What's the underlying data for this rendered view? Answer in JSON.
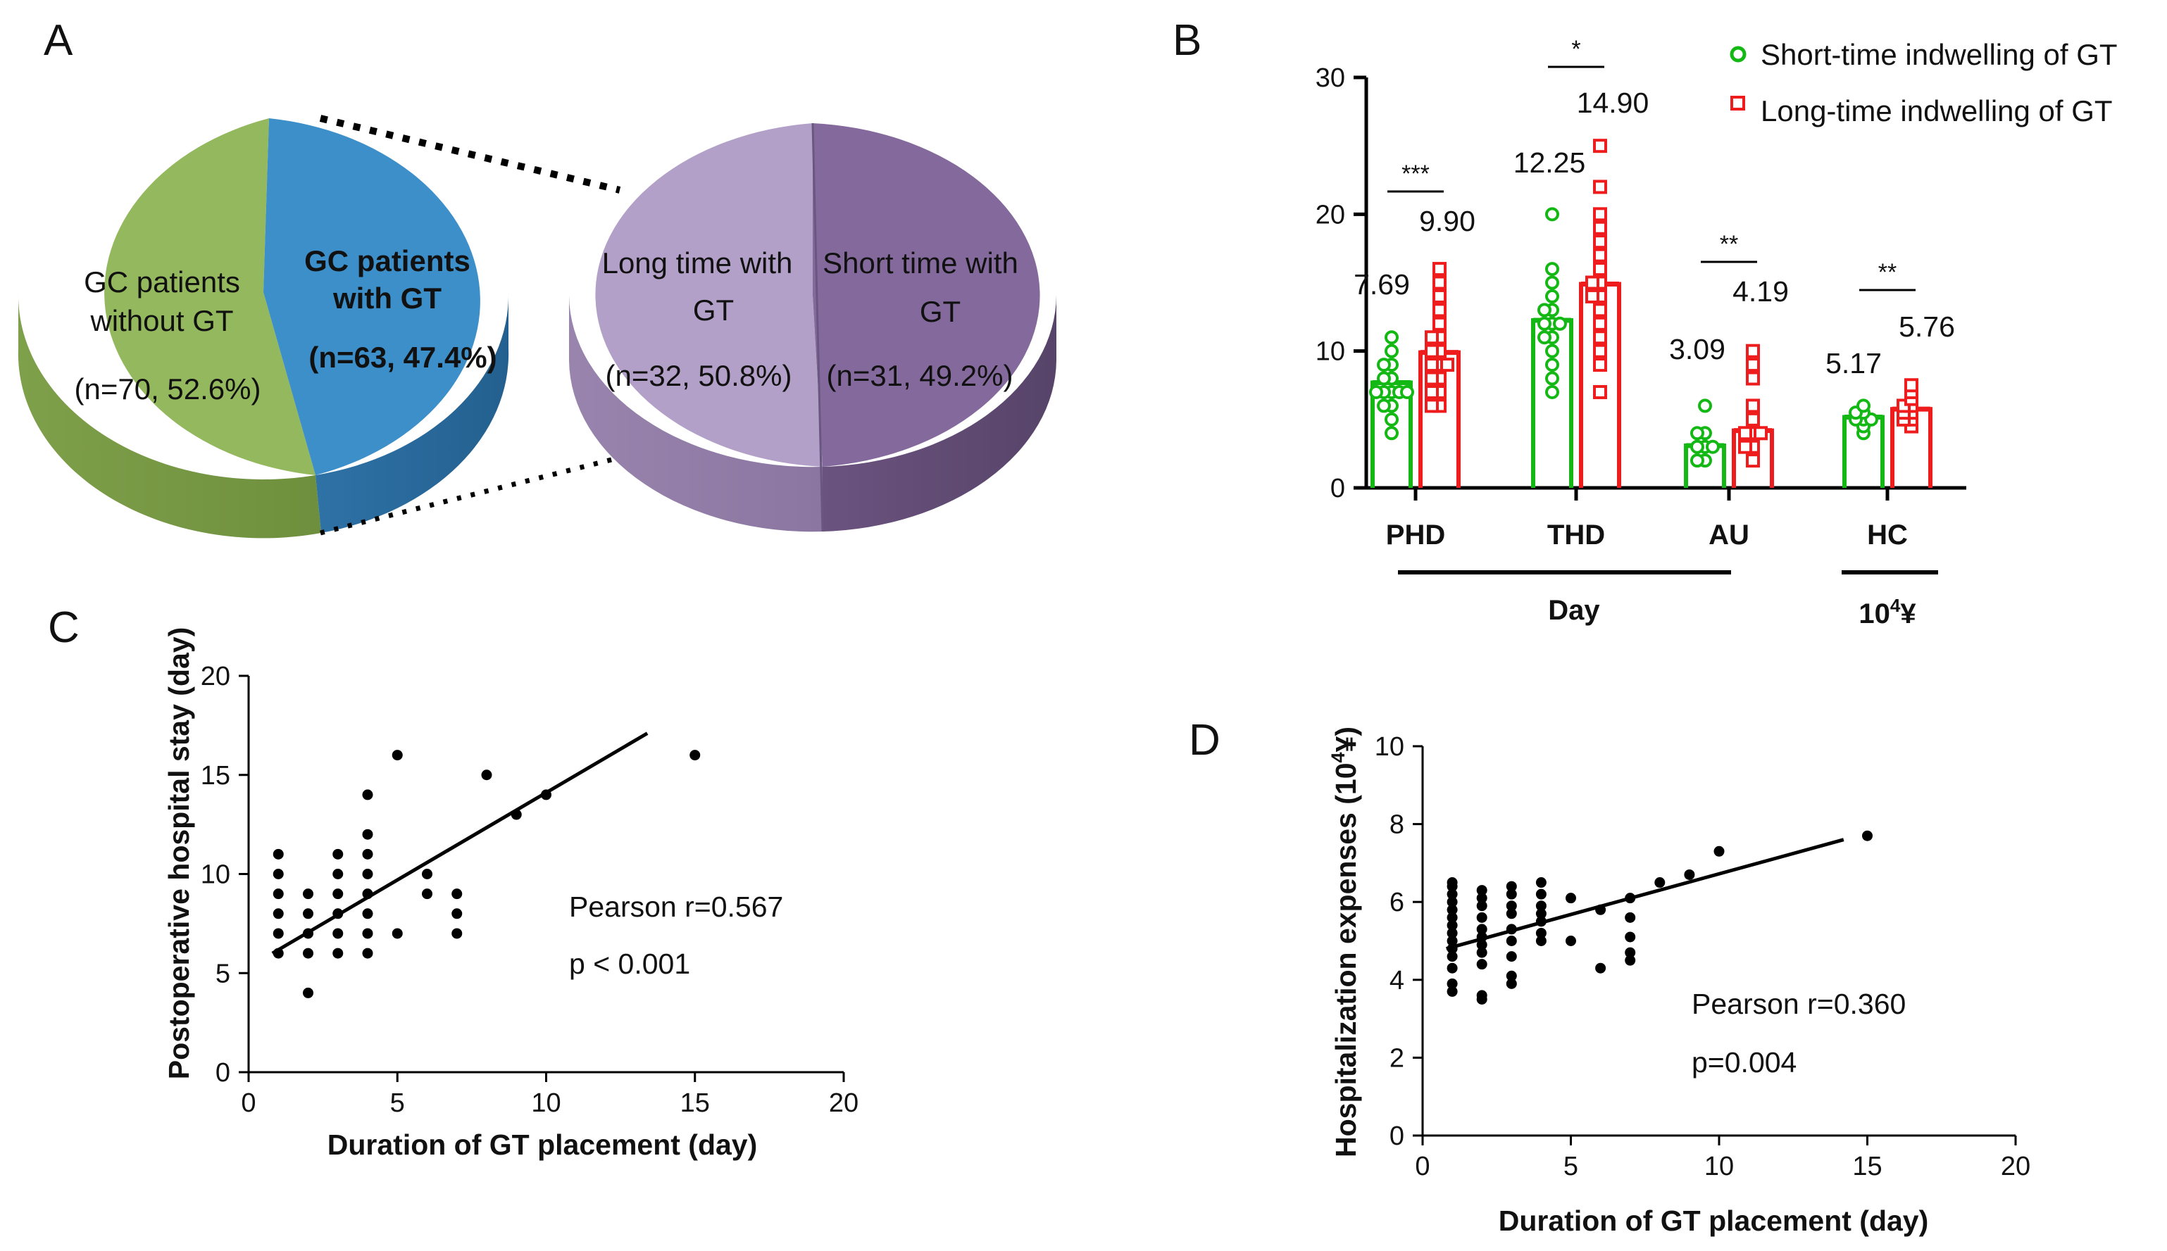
{
  "panels": {
    "a": "A",
    "b": "B",
    "c": "C",
    "d": "D"
  },
  "chart_data": [
    {
      "panel": "A",
      "type": "pie",
      "pies": [
        {
          "name": "all_patients",
          "slices": [
            {
              "label_lines": [
                "GC patients",
                "without GT"
              ],
              "value_text": "(n=70, 52.6%)",
              "n": 70,
              "percent": 52.6,
              "color": "#93b85d",
              "bold": false
            },
            {
              "label_lines": [
                "GC patients",
                "with GT"
              ],
              "value_text": "(n=63, 47.4%)",
              "n": 63,
              "percent": 47.4,
              "color": "#3d8fc9",
              "bold": true
            }
          ]
        },
        {
          "name": "gt_patients",
          "slices": [
            {
              "label_lines": [
                "Long time with",
                "GT"
              ],
              "value_text": "(n=32, 50.8%)",
              "n": 32,
              "percent": 50.8,
              "color": "#b3a0c8",
              "bold": false
            },
            {
              "label_lines": [
                "Short time with",
                "GT"
              ],
              "value_text": "(n=31, 49.2%)",
              "n": 31,
              "percent": 49.2,
              "color": "#846a9c",
              "bold": false
            }
          ]
        }
      ]
    },
    {
      "panel": "B",
      "type": "bar",
      "categories": [
        "PHD",
        "THD",
        "AU",
        "HC"
      ],
      "group_labels": {
        "day": "Day",
        "hc_unit_base": "10",
        "hc_unit_exp": "4",
        "hc_unit_sym": "¥"
      },
      "ylim": [
        0,
        30
      ],
      "yticks": [
        "0",
        "10",
        "20",
        "30"
      ],
      "series": [
        {
          "name": "Short-time indwelling of GT",
          "color": "#14b814",
          "marker": "circle",
          "values": [
            7.69,
            12.25,
            3.09,
            5.17
          ],
          "labels": [
            "7.69",
            "12.25",
            "3.09",
            "5.17"
          ],
          "points": [
            [
              4,
              5,
              6,
              6,
              7,
              7,
              7,
              7,
              7,
              8,
              8,
              9,
              9,
              10,
              11
            ],
            [
              7,
              8,
              9,
              10,
              11,
              11,
              12,
              12,
              12,
              13,
              13,
              14,
              15,
              16,
              20
            ],
            [
              2,
              2,
              3,
              3,
              3,
              4,
              4,
              6
            ],
            [
              4,
              4.5,
              5,
              5,
              5,
              5.5,
              5.5,
              6
            ]
          ]
        },
        {
          "name": "Long-time indwelling of GT",
          "color": "#ee1c1c",
          "marker": "square",
          "values": [
            9.9,
            14.9,
            4.19,
            5.76
          ],
          "labels": [
            "9.90",
            "14.90",
            "4.19",
            "5.76"
          ],
          "points": [
            [
              6,
              6,
              7,
              7,
              8,
              8,
              9,
              9,
              9,
              10,
              10,
              11,
              11,
              12,
              13,
              14,
              15,
              16
            ],
            [
              7,
              9,
              10,
              11,
              12,
              13,
              14,
              14,
              15,
              15,
              16,
              17,
              18,
              19,
              20,
              22,
              25
            ],
            [
              2,
              3,
              3,
              4,
              4,
              4,
              5,
              6,
              8,
              9,
              10
            ],
            [
              4.5,
              5,
              5,
              5.5,
              5.5,
              6,
              6,
              6.5,
              7,
              7.5
            ]
          ]
        }
      ],
      "significance": [
        "***",
        "*",
        "**",
        "**"
      ]
    },
    {
      "panel": "C",
      "type": "scatter",
      "xlabel": "Duration of GT placement (day)",
      "ylabel": "Postoperative hospital stay (day)",
      "xlim": [
        0,
        20
      ],
      "ylim": [
        0,
        20
      ],
      "xticks": [
        "0",
        "5",
        "10",
        "15",
        "20"
      ],
      "yticks": [
        "0",
        "5",
        "10",
        "15",
        "20"
      ],
      "pearson": "Pearson r=0.567",
      "p_value": "p < 0.001",
      "fit_line": {
        "x": [
          0.8,
          13.4
        ],
        "y": [
          6.0,
          17.1
        ]
      },
      "points": [
        [
          1,
          6
        ],
        [
          1,
          7
        ],
        [
          1,
          8
        ],
        [
          1,
          9
        ],
        [
          1,
          10
        ],
        [
          1,
          11
        ],
        [
          2,
          4
        ],
        [
          2,
          6
        ],
        [
          2,
          7
        ],
        [
          2,
          8
        ],
        [
          2,
          9
        ],
        [
          3,
          6
        ],
        [
          3,
          7
        ],
        [
          3,
          8
        ],
        [
          3,
          9
        ],
        [
          3,
          10
        ],
        [
          3,
          11
        ],
        [
          4,
          6
        ],
        [
          4,
          7
        ],
        [
          4,
          8
        ],
        [
          4,
          9
        ],
        [
          4,
          10
        ],
        [
          4,
          11
        ],
        [
          4,
          12
        ],
        [
          4,
          14
        ],
        [
          5,
          7
        ],
        [
          5,
          16
        ],
        [
          6,
          9
        ],
        [
          6,
          10
        ],
        [
          7,
          7
        ],
        [
          7,
          8
        ],
        [
          7,
          9
        ],
        [
          8,
          15
        ],
        [
          9,
          13
        ],
        [
          10,
          14
        ],
        [
          15,
          16
        ]
      ]
    },
    {
      "panel": "D",
      "type": "scatter",
      "xlabel": "Duration of GT placement (day)",
      "ylabel_main": "Hospitalization expenses (10",
      "ylabel_exp": "4",
      "ylabel_tail": "¥)",
      "xlim": [
        0,
        20
      ],
      "ylim": [
        0,
        10
      ],
      "xticks": [
        "0",
        "5",
        "10",
        "15",
        "20"
      ],
      "yticks": [
        "0",
        "2",
        "4",
        "6",
        "8",
        "10"
      ],
      "pearson": "Pearson r=0.360",
      "p_value": "p=0.004",
      "fit_line": {
        "x": [
          0.8,
          14.2
        ],
        "y": [
          4.8,
          7.6
        ]
      },
      "points": [
        [
          1,
          3.7
        ],
        [
          1,
          3.9
        ],
        [
          1,
          4.3
        ],
        [
          1,
          4.6
        ],
        [
          1,
          4.8
        ],
        [
          1,
          5.0
        ],
        [
          1,
          5.2
        ],
        [
          1,
          5.4
        ],
        [
          1,
          5.6
        ],
        [
          1,
          5.8
        ],
        [
          1,
          6.0
        ],
        [
          1,
          6.2
        ],
        [
          1,
          6.4
        ],
        [
          1,
          6.5
        ],
        [
          2,
          3.5
        ],
        [
          2,
          3.6
        ],
        [
          2,
          4.4
        ],
        [
          2,
          4.7
        ],
        [
          2,
          4.9
        ],
        [
          2,
          5.1
        ],
        [
          2,
          5.3
        ],
        [
          2,
          5.6
        ],
        [
          2,
          5.9
        ],
        [
          2,
          6.1
        ],
        [
          2,
          6.3
        ],
        [
          3,
          3.9
        ],
        [
          3,
          4.1
        ],
        [
          3,
          4.6
        ],
        [
          3,
          5.0
        ],
        [
          3,
          5.3
        ],
        [
          3,
          5.7
        ],
        [
          3,
          5.9
        ],
        [
          3,
          6.2
        ],
        [
          3,
          6.4
        ],
        [
          4,
          5.0
        ],
        [
          4,
          5.2
        ],
        [
          4,
          5.5
        ],
        [
          4,
          5.7
        ],
        [
          4,
          5.9
        ],
        [
          4,
          6.2
        ],
        [
          4,
          6.5
        ],
        [
          5,
          5.0
        ],
        [
          5,
          6.1
        ],
        [
          6,
          4.3
        ],
        [
          6,
          5.8
        ],
        [
          7,
          4.5
        ],
        [
          7,
          4.7
        ],
        [
          7,
          5.1
        ],
        [
          7,
          5.6
        ],
        [
          7,
          6.1
        ],
        [
          8,
          6.5
        ],
        [
          9,
          6.7
        ],
        [
          10,
          7.3
        ],
        [
          15,
          7.7
        ]
      ]
    }
  ]
}
